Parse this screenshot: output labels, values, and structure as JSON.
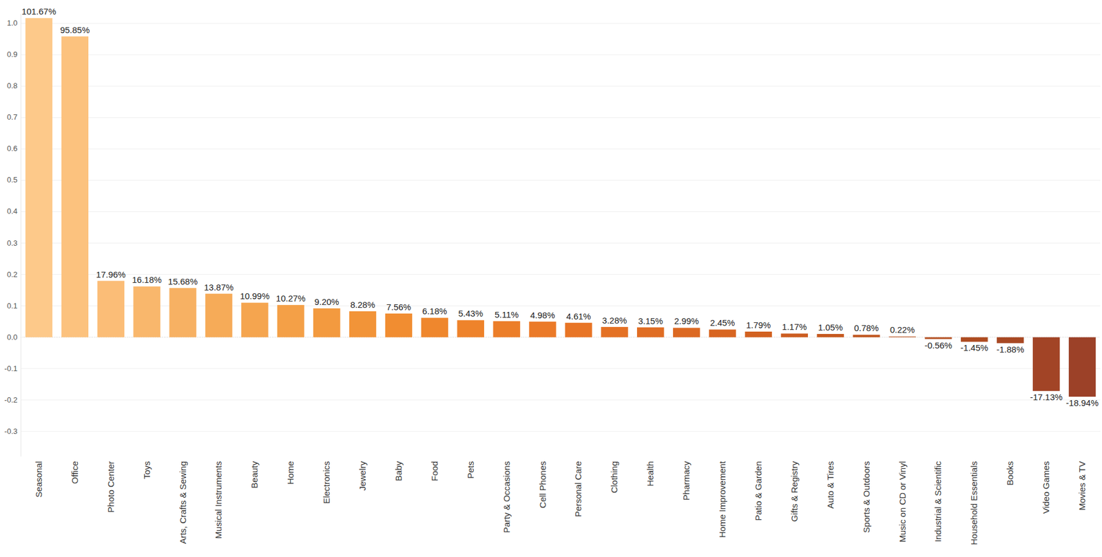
{
  "chart_data": {
    "type": "bar",
    "categories": [
      "Seasonal",
      "Office",
      "Photo Center",
      "Toys",
      "Arts, Crafts & Sewing",
      "Musical Instruments",
      "Beauty",
      "Home",
      "Electronics",
      "Jewelry",
      "Baby",
      "Food",
      "Pets",
      "Party & Occasions",
      "Cell Phones",
      "Personal Care",
      "Clothing",
      "Health",
      "Pharmacy",
      "Home Improvement",
      "Patio & Garden",
      "Gifts & Registry",
      "Auto & Tires",
      "Sports & Outdoors",
      "Music on CD or Vinyl",
      "Industrial & Scientific",
      "Household Essentials",
      "Books",
      "Video Games",
      "Movies & TV"
    ],
    "values": [
      1.0167,
      0.9585,
      0.1796,
      0.1618,
      0.1568,
      0.1387,
      0.1099,
      0.1027,
      0.092,
      0.0828,
      0.0756,
      0.0618,
      0.0543,
      0.0511,
      0.0498,
      0.0461,
      0.0328,
      0.0315,
      0.0299,
      0.0245,
      0.0179,
      0.0117,
      0.0105,
      0.0078,
      0.0022,
      -0.0056,
      -0.0145,
      -0.0188,
      -0.1713,
      -0.1894
    ],
    "value_labels": [
      "101.67%",
      "95.85%",
      "17.96%",
      "16.18%",
      "15.68%",
      "13.87%",
      "10.99%",
      "10.27%",
      "9.20%",
      "8.28%",
      "7.56%",
      "6.18%",
      "5.43%",
      "5.11%",
      "4.98%",
      "4.61%",
      "3.28%",
      "3.15%",
      "2.99%",
      "2.45%",
      "1.79%",
      "1.17%",
      "1.05%",
      "0.78%",
      "0.22%",
      "-0.56%",
      "-1.45%",
      "-1.88%",
      "-17.13%",
      "-18.94%"
    ],
    "colors": [
      "#fdc98a",
      "#fcc27e",
      "#fbbd77",
      "#f9b76c",
      "#f7b163",
      "#f6ab58",
      "#f5a54f",
      "#f4a047",
      "#f39a3f",
      "#f29438",
      "#f18d31",
      "#ef872d",
      "#ee832b",
      "#ec7e29",
      "#eb7a28",
      "#e87526",
      "#e47124",
      "#e06d23",
      "#dc6922",
      "#d86521",
      "#d26120",
      "#cc5d20",
      "#c6591f",
      "#c0561f",
      "#ba531f",
      "#b44f20",
      "#ae4c21",
      "#a84823",
      "#a24426",
      "#9c4128"
    ],
    "ylim": [
      -0.38,
      1.03
    ],
    "yticks": [
      -0.3,
      -0.2,
      -0.1,
      {
        "value": 0,
        "label": "0.0"
      },
      0.1,
      0.2,
      0.3,
      0.4,
      0.5,
      0.6,
      0.7,
      0.8,
      0.9,
      {
        "value": 1,
        "label": "1.0"
      }
    ],
    "grid": true,
    "data_labels": true
  }
}
